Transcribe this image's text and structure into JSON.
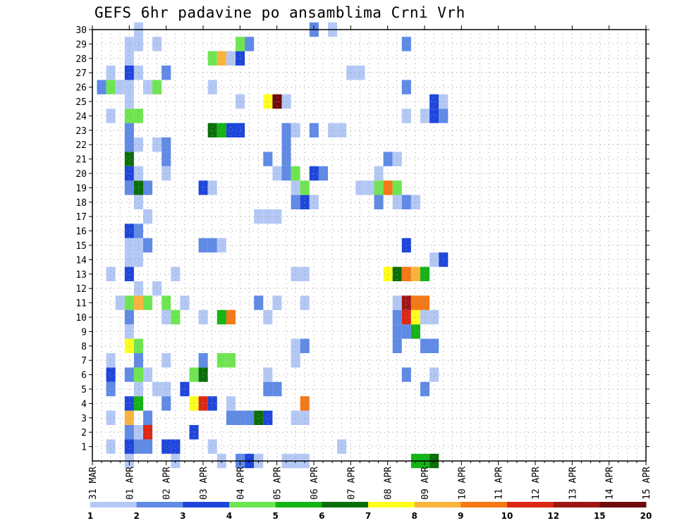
{
  "chart_data": {
    "type": "heatmap",
    "title": "GEFS 6hr padavine po ansamblima Crni Vrh",
    "xlabel": "",
    "ylabel": "",
    "x_ticks": [
      "31 MAR",
      "01 APR",
      "02 APR",
      "03 APR",
      "04 APR",
      "05 APR",
      "06 APR",
      "07 APR",
      "08 APR",
      "09 APR",
      "10 APR",
      "11 APR",
      "12 APR",
      "13 APR",
      "14 APR",
      "15 APR"
    ],
    "y_ticks": [
      1,
      2,
      3,
      4,
      5,
      6,
      7,
      8,
      9,
      10,
      11,
      12,
      13,
      14,
      15,
      16,
      17,
      18,
      19,
      20,
      21,
      22,
      23,
      24,
      25,
      26,
      27,
      28,
      29,
      30
    ],
    "ylim": [
      0,
      30
    ],
    "x_range": [
      "31 MAR",
      "15 APR"
    ],
    "grid": true,
    "time_step_hours": 6,
    "colorbar": {
      "levels": [
        "1",
        "2",
        "3",
        "4",
        "5",
        "6",
        "7",
        "8",
        "9",
        "10",
        "12",
        "15",
        "20"
      ],
      "colors": [
        "#b4c8f5",
        "#5f8ae6",
        "#1e46dc",
        "#6ee650",
        "#14b414",
        "#0a6e0a",
        "#ffff1e",
        "#fab43c",
        "#f57814",
        "#dc2814",
        "#a01414",
        "#6e0a0a"
      ]
    },
    "legend_colors": {
      "1": "#b4c8f5",
      "2": "#5f8ae6",
      "3": "#1e46dc",
      "4": "#6ee650",
      "5": "#14b414",
      "6": "#0a6e0a",
      "7": "#ffff1e",
      "8": "#fab43c",
      "9": "#f57814",
      "10": "#dc2814",
      "11": "#a01414",
      "12": "#6e0a0a"
    },
    "cells": [
      [
        3,
        0,
        1
      ],
      [
        3,
        1,
        2
      ],
      [
        3,
        2,
        2
      ],
      [
        8,
        0,
        1
      ],
      [
        13,
        0,
        1
      ],
      [
        15,
        0,
        2
      ],
      [
        16,
        0,
        3
      ],
      [
        17,
        0,
        1
      ],
      [
        20,
        0,
        1
      ],
      [
        21,
        0,
        1
      ],
      [
        22,
        0,
        1
      ],
      [
        34,
        0,
        5
      ],
      [
        35,
        0,
        5
      ],
      [
        36,
        0,
        6
      ],
      [
        1,
        1,
        1
      ],
      [
        3,
        1,
        3
      ],
      [
        4,
        1,
        2
      ],
      [
        5,
        1,
        2
      ],
      [
        7,
        1,
        3
      ],
      [
        8,
        1,
        3
      ],
      [
        12,
        1,
        1
      ],
      [
        26,
        1,
        1
      ],
      [
        4,
        2,
        1
      ],
      [
        5,
        2,
        10
      ],
      [
        10,
        2,
        3
      ],
      [
        1,
        3,
        1
      ],
      [
        3,
        3,
        8
      ],
      [
        5,
        3,
        2
      ],
      [
        14,
        3,
        2
      ],
      [
        15,
        3,
        2
      ],
      [
        16,
        3,
        2
      ],
      [
        17,
        3,
        6
      ],
      [
        18,
        3,
        3
      ],
      [
        21,
        3,
        1
      ],
      [
        22,
        3,
        1
      ],
      [
        3,
        4,
        3
      ],
      [
        4,
        4,
        5
      ],
      [
        7,
        4,
        2
      ],
      [
        10,
        4,
        7
      ],
      [
        11,
        4,
        10
      ],
      [
        12,
        4,
        3
      ],
      [
        14,
        4,
        1
      ],
      [
        22,
        4,
        9
      ],
      [
        1,
        5,
        2
      ],
      [
        4,
        5,
        1
      ],
      [
        6,
        5,
        1
      ],
      [
        7,
        5,
        1
      ],
      [
        9,
        5,
        3
      ],
      [
        18,
        5,
        2
      ],
      [
        19,
        5,
        2
      ],
      [
        35,
        5,
        2
      ],
      [
        1,
        6,
        3
      ],
      [
        3,
        6,
        2
      ],
      [
        4,
        6,
        4
      ],
      [
        5,
        6,
        1
      ],
      [
        10,
        6,
        4
      ],
      [
        11,
        6,
        6
      ],
      [
        18,
        6,
        1
      ],
      [
        33,
        6,
        2
      ],
      [
        36,
        6,
        1
      ],
      [
        1,
        7,
        1
      ],
      [
        4,
        7,
        2
      ],
      [
        7,
        7,
        1
      ],
      [
        11,
        7,
        2
      ],
      [
        13,
        7,
        4
      ],
      [
        14,
        7,
        4
      ],
      [
        21,
        7,
        1
      ],
      [
        3,
        8,
        7
      ],
      [
        4,
        8,
        4
      ],
      [
        21,
        8,
        1
      ],
      [
        22,
        8,
        2
      ],
      [
        32,
        8,
        2
      ],
      [
        35,
        8,
        2
      ],
      [
        36,
        8,
        2
      ],
      [
        3,
        9,
        1
      ],
      [
        32,
        9,
        2
      ],
      [
        33,
        9,
        2
      ],
      [
        34,
        9,
        5
      ],
      [
        3,
        10,
        2
      ],
      [
        7,
        10,
        1
      ],
      [
        8,
        10,
        4
      ],
      [
        11,
        10,
        1
      ],
      [
        13,
        10,
        5
      ],
      [
        14,
        10,
        9
      ],
      [
        18,
        10,
        1
      ],
      [
        32,
        10,
        2
      ],
      [
        33,
        10,
        10
      ],
      [
        34,
        10,
        7
      ],
      [
        35,
        10,
        1
      ],
      [
        36,
        10,
        1
      ],
      [
        2,
        11,
        1
      ],
      [
        3,
        11,
        4
      ],
      [
        4,
        11,
        8
      ],
      [
        5,
        11,
        4
      ],
      [
        7,
        11,
        4
      ],
      [
        9,
        11,
        1
      ],
      [
        17,
        11,
        2
      ],
      [
        19,
        11,
        1
      ],
      [
        22,
        11,
        1
      ],
      [
        32,
        11,
        1
      ],
      [
        33,
        11,
        11
      ],
      [
        34,
        11,
        9
      ],
      [
        35,
        11,
        9
      ],
      [
        4,
        12,
        1
      ],
      [
        6,
        12,
        1
      ],
      [
        1,
        13,
        1
      ],
      [
        3,
        13,
        3
      ],
      [
        8,
        13,
        1
      ],
      [
        21,
        13,
        1
      ],
      [
        22,
        13,
        1
      ],
      [
        31,
        13,
        7
      ],
      [
        32,
        13,
        6
      ],
      [
        33,
        13,
        9
      ],
      [
        34,
        13,
        8
      ],
      [
        35,
        13,
        5
      ],
      [
        3,
        14,
        1
      ],
      [
        4,
        14,
        1
      ],
      [
        36,
        14,
        1
      ],
      [
        37,
        14,
        3
      ],
      [
        3,
        15,
        1
      ],
      [
        4,
        15,
        1
      ],
      [
        5,
        15,
        2
      ],
      [
        11,
        15,
        2
      ],
      [
        12,
        15,
        2
      ],
      [
        13,
        15,
        1
      ],
      [
        33,
        15,
        3
      ],
      [
        3,
        16,
        3
      ],
      [
        4,
        16,
        2
      ],
      [
        5,
        17,
        1
      ],
      [
        17,
        17,
        1
      ],
      [
        18,
        17,
        1
      ],
      [
        19,
        17,
        1
      ],
      [
        4,
        18,
        1
      ],
      [
        21,
        18,
        2
      ],
      [
        22,
        18,
        3
      ],
      [
        23,
        18,
        1
      ],
      [
        30,
        18,
        2
      ],
      [
        32,
        18,
        1
      ],
      [
        33,
        18,
        2
      ],
      [
        34,
        18,
        1
      ],
      [
        3,
        19,
        2
      ],
      [
        4,
        19,
        6
      ],
      [
        5,
        19,
        2
      ],
      [
        11,
        19,
        3
      ],
      [
        12,
        19,
        1
      ],
      [
        21,
        19,
        1
      ],
      [
        22,
        19,
        4
      ],
      [
        28,
        19,
        1
      ],
      [
        29,
        19,
        1
      ],
      [
        30,
        19,
        4
      ],
      [
        31,
        19,
        9
      ],
      [
        32,
        19,
        4
      ],
      [
        3,
        20,
        3
      ],
      [
        4,
        20,
        1
      ],
      [
        7,
        20,
        1
      ],
      [
        19,
        20,
        1
      ],
      [
        20,
        20,
        2
      ],
      [
        21,
        20,
        4
      ],
      [
        23,
        20,
        3
      ],
      [
        24,
        20,
        2
      ],
      [
        30,
        20,
        1
      ],
      [
        3,
        21,
        6
      ],
      [
        7,
        21,
        2
      ],
      [
        18,
        21,
        2
      ],
      [
        20,
        21,
        2
      ],
      [
        31,
        21,
        2
      ],
      [
        32,
        21,
        1
      ],
      [
        3,
        22,
        2
      ],
      [
        4,
        22,
        1
      ],
      [
        6,
        22,
        1
      ],
      [
        7,
        22,
        2
      ],
      [
        20,
        22,
        2
      ],
      [
        3,
        23,
        2
      ],
      [
        12,
        23,
        6
      ],
      [
        13,
        23,
        5
      ],
      [
        14,
        23,
        3
      ],
      [
        15,
        23,
        3
      ],
      [
        20,
        23,
        2
      ],
      [
        21,
        23,
        1
      ],
      [
        23,
        23,
        2
      ],
      [
        25,
        23,
        1
      ],
      [
        26,
        23,
        1
      ],
      [
        1,
        24,
        1
      ],
      [
        3,
        24,
        4
      ],
      [
        4,
        24,
        4
      ],
      [
        33,
        24,
        1
      ],
      [
        35,
        24,
        1
      ],
      [
        36,
        24,
        3
      ],
      [
        37,
        24,
        2
      ],
      [
        3,
        25,
        1
      ],
      [
        15,
        25,
        1
      ],
      [
        18,
        25,
        7
      ],
      [
        19,
        25,
        12
      ],
      [
        20,
        25,
        1
      ],
      [
        36,
        25,
        3
      ],
      [
        37,
        25,
        1
      ],
      [
        0,
        26,
        2
      ],
      [
        1,
        26,
        4
      ],
      [
        2,
        26,
        1
      ],
      [
        3,
        26,
        1
      ],
      [
        5,
        26,
        1
      ],
      [
        6,
        26,
        4
      ],
      [
        12,
        26,
        1
      ],
      [
        33,
        26,
        2
      ],
      [
        1,
        27,
        1
      ],
      [
        3,
        27,
        3
      ],
      [
        4,
        27,
        1
      ],
      [
        7,
        27,
        2
      ],
      [
        27,
        27,
        1
      ],
      [
        28,
        27,
        1
      ],
      [
        3,
        28,
        1
      ],
      [
        12,
        28,
        4
      ],
      [
        13,
        28,
        8
      ],
      [
        14,
        28,
        1
      ],
      [
        15,
        28,
        3
      ],
      [
        3,
        29,
        1
      ],
      [
        4,
        29,
        1
      ],
      [
        6,
        29,
        1
      ],
      [
        15,
        29,
        4
      ],
      [
        16,
        29,
        2
      ],
      [
        33,
        29,
        2
      ],
      [
        4,
        30,
        1
      ],
      [
        23,
        30,
        2
      ],
      [
        25,
        30,
        1
      ]
    ]
  }
}
